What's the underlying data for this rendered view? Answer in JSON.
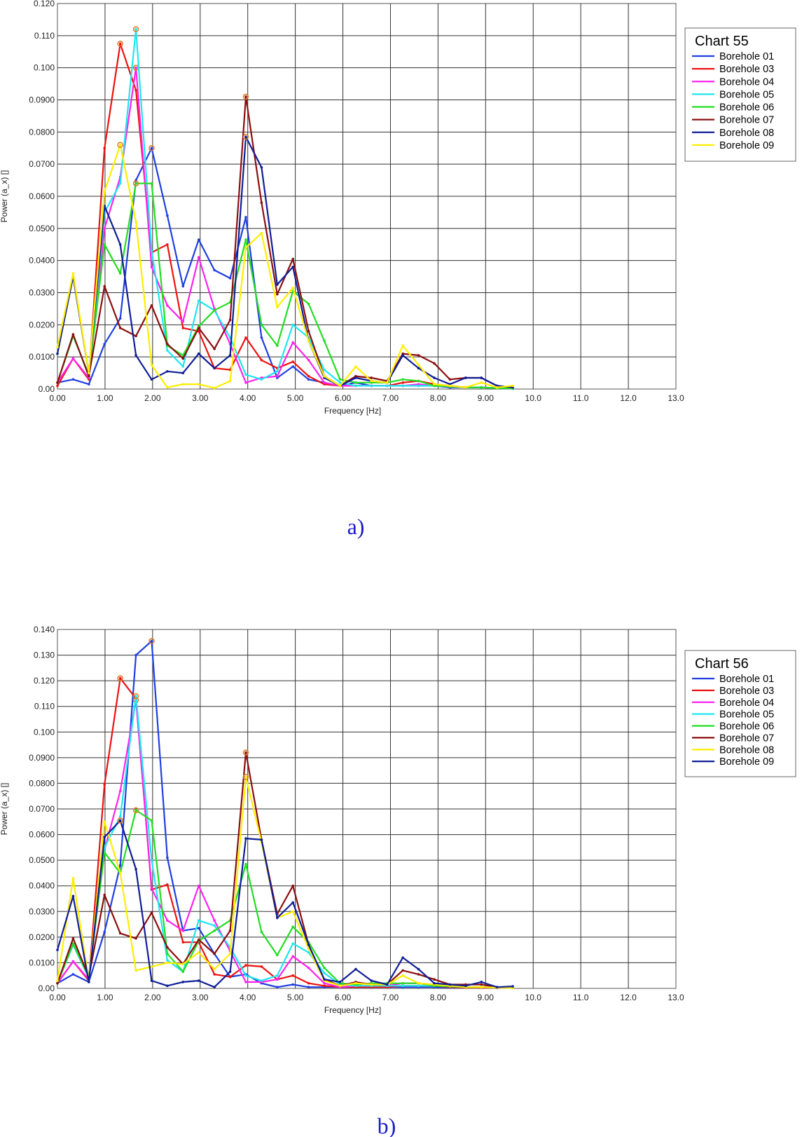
{
  "captions": [
    "a)",
    "b)"
  ],
  "chart_data": [
    {
      "type": "line",
      "title": "Chart 55",
      "xlabel": "Frequency [Hz]",
      "ylabel": "Power (a_x) []",
      "xlim": [
        0,
        13
      ],
      "ylim": [
        0,
        0.12
      ],
      "x_ticks": [
        "0.00",
        "1.00",
        "2.00",
        "3.00",
        "4.00",
        "5.00",
        "6.00",
        "7.00",
        "8.00",
        "9.00",
        "10.0",
        "11.0",
        "12.0",
        "13.0"
      ],
      "y_ticks": [
        "0.00",
        "0.0100",
        "0.0200",
        "0.0300",
        "0.0400",
        "0.0500",
        "0.0600",
        "0.0700",
        "0.0800",
        "0.0900",
        "0.100",
        "0.110",
        "0.120"
      ],
      "grid": true,
      "legend_position": "right",
      "x": [
        0.0,
        0.33,
        0.66,
        0.99,
        1.32,
        1.65,
        1.98,
        2.31,
        2.64,
        2.97,
        3.3,
        3.63,
        3.96,
        4.29,
        4.62,
        4.95,
        5.28,
        5.61,
        5.94,
        6.27,
        6.6,
        6.93,
        7.26,
        7.59,
        7.92,
        8.25,
        8.58,
        8.91,
        9.24,
        9.57
      ],
      "series": [
        {
          "name": "Borehole 01",
          "color": "#1f3fe0",
          "values": [
            0.002,
            0.003,
            0.0015,
            0.014,
            0.022,
            0.065,
            0.075,
            0.054,
            0.032,
            0.0465,
            0.037,
            0.0345,
            0.0535,
            0.016,
            0.0035,
            0.007,
            0.003,
            0.002,
            0.001,
            0.002,
            0.001,
            0.001,
            0.001,
            0.001,
            0.001,
            0.0005,
            0.0005,
            0.0005,
            0.0003,
            0.0002
          ]
        },
        {
          "name": "Borehole 03",
          "color": "#ee1111",
          "values": [
            0.001,
            0.0095,
            0.003,
            0.075,
            0.1075,
            0.093,
            0.0425,
            0.045,
            0.019,
            0.018,
            0.0065,
            0.006,
            0.016,
            0.009,
            0.0065,
            0.0085,
            0.004,
            0.0015,
            0.001,
            0.001,
            0.001,
            0.001,
            0.002,
            0.0025,
            0.0015,
            0.001,
            0.0005,
            0.0005,
            0.0003,
            0.0002
          ]
        },
        {
          "name": "Borehole 04",
          "color": "#ff22ee",
          "values": [
            0.002,
            0.0095,
            0.0035,
            0.05,
            0.066,
            0.1,
            0.038,
            0.026,
            0.021,
            0.041,
            0.025,
            0.014,
            0.002,
            0.0035,
            0.004,
            0.0145,
            0.009,
            0.002,
            0.001,
            0.001,
            0.001,
            0.001,
            0.001,
            0.0015,
            0.001,
            0.0008,
            0.0005,
            0.0005,
            0.0003,
            0.0002
          ]
        },
        {
          "name": "Borehole 05",
          "color": "#1fe6f0",
          "values": [
            0.002,
            0.017,
            0.004,
            0.055,
            0.064,
            0.112,
            0.043,
            0.012,
            0.007,
            0.0275,
            0.0245,
            0.016,
            0.0045,
            0.003,
            0.0055,
            0.02,
            0.016,
            0.006,
            0.002,
            0.001,
            0.001,
            0.001,
            0.001,
            0.001,
            0.001,
            0.0008,
            0.0005,
            0.0005,
            0.0003,
            0.0002
          ]
        },
        {
          "name": "Borehole 06",
          "color": "#22dd22",
          "values": [
            0.002,
            0.0165,
            0.0045,
            0.045,
            0.036,
            0.064,
            0.064,
            0.0135,
            0.0105,
            0.0195,
            0.0245,
            0.027,
            0.0465,
            0.02,
            0.0135,
            0.0305,
            0.0265,
            0.015,
            0.003,
            0.002,
            0.002,
            0.002,
            0.003,
            0.0025,
            0.001,
            0.0008,
            0.0005,
            0.0005,
            0.0003,
            0.0002
          ]
        },
        {
          "name": "Borehole 07",
          "color": "#8b0f0f",
          "values": [
            0.002,
            0.017,
            0.004,
            0.032,
            0.019,
            0.0165,
            0.026,
            0.014,
            0.0095,
            0.019,
            0.0125,
            0.0215,
            0.091,
            0.058,
            0.0295,
            0.0405,
            0.018,
            0.004,
            0.001,
            0.004,
            0.0035,
            0.0025,
            0.011,
            0.0105,
            0.008,
            0.003,
            0.0035,
            0.0035,
            0.001,
            0.0005
          ]
        },
        {
          "name": "Borehole 08",
          "color": "#0f1e96",
          "values": [
            0.011,
            0.035,
            0.005,
            0.057,
            0.045,
            0.0105,
            0.003,
            0.0055,
            0.005,
            0.011,
            0.0065,
            0.0105,
            0.0785,
            0.069,
            0.0325,
            0.038,
            0.015,
            0.0035,
            0.001,
            0.0035,
            0.0025,
            0.002,
            0.0105,
            0.0065,
            0.0035,
            0.0015,
            0.0035,
            0.0035,
            0.001,
            0.0005
          ]
        },
        {
          "name": "Borehole 09",
          "color": "#ffee00",
          "values": [
            0.013,
            0.036,
            0.005,
            0.0615,
            0.076,
            0.052,
            0.0075,
            0.0005,
            0.0015,
            0.0015,
            0.0003,
            0.0025,
            0.044,
            0.0485,
            0.0255,
            0.0315,
            0.015,
            0.004,
            0.001,
            0.007,
            0.0025,
            0.002,
            0.0135,
            0.0075,
            0.0015,
            0.001,
            0.0005,
            0.002,
            0.0005,
            0.001
          ]
        }
      ]
    },
    {
      "type": "line",
      "title": "Chart 56",
      "xlabel": "Frequency [Hz]",
      "ylabel": "Power (a_x) []",
      "xlim": [
        0,
        13
      ],
      "ylim": [
        0,
        0.14
      ],
      "x_ticks": [
        "0.00",
        "1.00",
        "2.00",
        "3.00",
        "4.00",
        "5.00",
        "6.00",
        "7.00",
        "8.00",
        "9.00",
        "10.0",
        "11.0",
        "12.0",
        "13.0"
      ],
      "y_ticks": [
        "0.00",
        "0.0100",
        "0.0200",
        "0.0300",
        "0.0400",
        "0.0500",
        "0.0600",
        "0.0700",
        "0.0800",
        "0.0900",
        "0.100",
        "0.110",
        "0.120",
        "0.130",
        "0.140"
      ],
      "grid": true,
      "legend_position": "right",
      "x": [
        0.0,
        0.33,
        0.66,
        0.99,
        1.32,
        1.65,
        1.98,
        2.31,
        2.64,
        2.97,
        3.3,
        3.63,
        3.96,
        4.29,
        4.62,
        4.95,
        5.28,
        5.61,
        5.94,
        6.27,
        6.6,
        6.93,
        7.26,
        7.59,
        7.92,
        8.25,
        8.58,
        8.91,
        9.24,
        9.57
      ],
      "series": [
        {
          "name": "Borehole 01",
          "color": "#1f3fe0",
          "values": [
            0.002,
            0.0055,
            0.0025,
            0.022,
            0.048,
            0.13,
            0.1355,
            0.051,
            0.0225,
            0.0235,
            0.0135,
            0.0045,
            0.0055,
            0.002,
            0.0005,
            0.0015,
            0.0005,
            0.0005,
            0.0005,
            0.0005,
            0.0005,
            0.0005,
            0.0005,
            0.0005,
            0.0005,
            0.0003,
            0.0003,
            0.0003,
            0.0002,
            0.0002
          ]
        },
        {
          "name": "Borehole 03",
          "color": "#ee1111",
          "values": [
            0.002,
            0.0105,
            0.003,
            0.0795,
            0.121,
            0.113,
            0.0385,
            0.0405,
            0.018,
            0.018,
            0.0055,
            0.0045,
            0.009,
            0.0085,
            0.0035,
            0.005,
            0.002,
            0.001,
            0.0005,
            0.0005,
            0.0005,
            0.0005,
            0.001,
            0.001,
            0.001,
            0.0005,
            0.0003,
            0.0003,
            0.0002,
            0.0002
          ]
        },
        {
          "name": "Borehole 04",
          "color": "#ff22ee",
          "values": [
            0.002,
            0.0105,
            0.0035,
            0.054,
            0.077,
            0.1125,
            0.039,
            0.0265,
            0.0225,
            0.04,
            0.0265,
            0.0145,
            0.0025,
            0.0025,
            0.0035,
            0.0125,
            0.008,
            0.002,
            0.0005,
            0.001,
            0.001,
            0.001,
            0.002,
            0.002,
            0.0015,
            0.001,
            0.0005,
            0.0005,
            0.0003,
            0.0002
          ]
        },
        {
          "name": "Borehole 05",
          "color": "#1fe6f0",
          "values": [
            0.002,
            0.017,
            0.004,
            0.055,
            0.067,
            0.114,
            0.05,
            0.011,
            0.0065,
            0.0265,
            0.0245,
            0.016,
            0.005,
            0.003,
            0.005,
            0.0175,
            0.014,
            0.006,
            0.0015,
            0.001,
            0.001,
            0.001,
            0.001,
            0.001,
            0.001,
            0.0008,
            0.0005,
            0.0005,
            0.0003,
            0.0002
          ]
        },
        {
          "name": "Borehole 06",
          "color": "#22dd22",
          "values": [
            0.002,
            0.0175,
            0.0045,
            0.053,
            0.045,
            0.0695,
            0.0655,
            0.0135,
            0.0065,
            0.0185,
            0.0225,
            0.0265,
            0.0485,
            0.022,
            0.013,
            0.024,
            0.018,
            0.008,
            0.002,
            0.0015,
            0.002,
            0.002,
            0.002,
            0.002,
            0.001,
            0.0008,
            0.0005,
            0.0005,
            0.0003,
            0.0002
          ]
        },
        {
          "name": "Borehole 07",
          "color": "#8b0f0f",
          "values": [
            0.002,
            0.0195,
            0.0045,
            0.0365,
            0.0215,
            0.0195,
            0.0295,
            0.016,
            0.0095,
            0.019,
            0.0135,
            0.0225,
            0.092,
            0.058,
            0.029,
            0.04,
            0.017,
            0.0035,
            0.001,
            0.0025,
            0.0015,
            0.0015,
            0.007,
            0.0055,
            0.0035,
            0.0015,
            0.0015,
            0.0015,
            0.0005,
            0.0003
          ]
        },
        {
          "name": "Borehole 08",
          "color": "#ffee00",
          "values": [
            0.003,
            0.043,
            0.003,
            0.065,
            0.045,
            0.007,
            0.0085,
            0.01,
            0.0095,
            0.014,
            0.0075,
            0.0135,
            0.0825,
            0.057,
            0.0275,
            0.03,
            0.0155,
            0.003,
            0.001,
            0.002,
            0.0015,
            0.0015,
            0.005,
            0.002,
            0.0015,
            0.001,
            0.0005,
            0.0005,
            0.0003,
            0.0002
          ]
        },
        {
          "name": "Borehole 09",
          "color": "#0f1e96",
          "values": [
            0.015,
            0.036,
            0.0025,
            0.059,
            0.0655,
            0.0465,
            0.003,
            0.001,
            0.0025,
            0.003,
            0.0005,
            0.0065,
            0.0585,
            0.058,
            0.0275,
            0.0335,
            0.017,
            0.0035,
            0.0025,
            0.0075,
            0.003,
            0.0015,
            0.012,
            0.0075,
            0.002,
            0.0015,
            0.001,
            0.0025,
            0.0005,
            0.0008
          ]
        }
      ]
    }
  ]
}
